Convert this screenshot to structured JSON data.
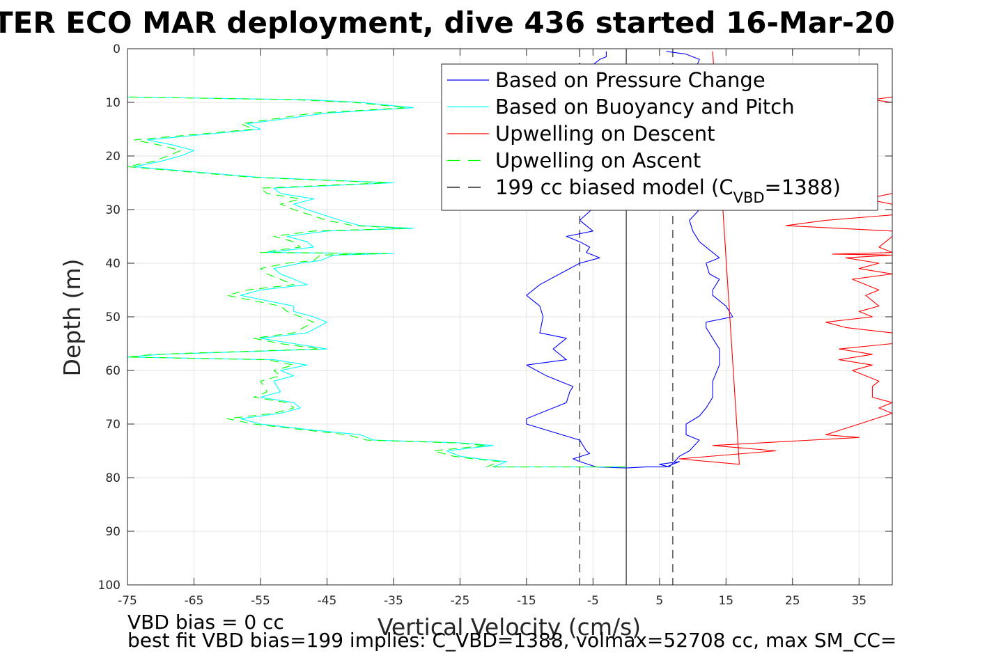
{
  "chart_data": {
    "type": "line",
    "title": "TER ECO MAR deployment, dive 436 started 16-Mar-20",
    "xlabel": "Vertical Velocity (cm/s)",
    "ylabel": "Depth (m)",
    "xlim": [
      -75,
      40
    ],
    "ylim": [
      100,
      0
    ],
    "y_reversed": true,
    "x_ticks": [
      -75,
      -65,
      -55,
      -45,
      -35,
      -25,
      -15,
      -5,
      5,
      15,
      25,
      35
    ],
    "y_ticks": [
      0,
      10,
      20,
      30,
      40,
      50,
      60,
      70,
      80,
      90,
      100
    ],
    "grid": true,
    "legend_position": "top-right",
    "legend": [
      {
        "label": "Based on Pressure Change",
        "color": "#0000ff",
        "style": "solid"
      },
      {
        "label": "Based on Buoyancy and Pitch",
        "color": "#00ffff",
        "style": "solid"
      },
      {
        "label": "Upwelling on Descent",
        "color": "#ff0000",
        "style": "solid"
      },
      {
        "label": "Upwelling on Ascent",
        "color": "#00ff00",
        "style": "dashed"
      },
      {
        "label": "199 cc biased model (C",
        "sub": "VBD",
        "suffix": "=1388)",
        "color": "#000000",
        "style": "dashed"
      }
    ],
    "series": [
      {
        "name": "Based on Pressure Change",
        "color": "#0000ff",
        "dash": "",
        "points": [
          [
            -3,
            0.5
          ],
          [
            -3,
            1.5
          ],
          [
            -4,
            2
          ],
          [
            -5,
            3
          ],
          [
            -5,
            8
          ],
          [
            -5.5,
            20
          ],
          [
            -5.2,
            30
          ],
          [
            -7,
            32
          ],
          [
            -5,
            34
          ],
          [
            -9,
            35
          ],
          [
            -7,
            36
          ],
          [
            -5.5,
            37
          ],
          [
            -6,
            38
          ],
          [
            -4,
            39
          ],
          [
            -7,
            40
          ],
          [
            -10,
            42
          ],
          [
            -13,
            44
          ],
          [
            -15,
            46
          ],
          [
            -13,
            48
          ],
          [
            -12.5,
            50
          ],
          [
            -13,
            53
          ],
          [
            -9,
            54
          ],
          [
            -11,
            56
          ],
          [
            -9,
            58
          ],
          [
            -15,
            59
          ],
          [
            -12,
            61
          ],
          [
            -8,
            63
          ],
          [
            -8.5,
            64
          ],
          [
            -9,
            66
          ],
          [
            -15,
            69
          ],
          [
            -15,
            70
          ],
          [
            -7,
            73
          ],
          [
            -6,
            75
          ],
          [
            -5.5,
            75.5
          ],
          [
            -8,
            76.5
          ],
          [
            -7,
            77
          ],
          [
            -4.5,
            78
          ],
          [
            0,
            78.2
          ],
          [
            3,
            78
          ],
          [
            6,
            78
          ],
          [
            8,
            77
          ],
          [
            5,
            77.5
          ],
          [
            6.5,
            78
          ],
          [
            8,
            76
          ],
          [
            9.5,
            75
          ],
          [
            11,
            73
          ],
          [
            9,
            72
          ],
          [
            9,
            70
          ],
          [
            11,
            68.5
          ],
          [
            12,
            67
          ],
          [
            13,
            65
          ],
          [
            13,
            62
          ],
          [
            14,
            59
          ],
          [
            14,
            56
          ],
          [
            13,
            54
          ],
          [
            12,
            52
          ],
          [
            12,
            51
          ],
          [
            16,
            50
          ],
          [
            15,
            48
          ],
          [
            13,
            46
          ],
          [
            13,
            45
          ],
          [
            14,
            43
          ],
          [
            12.5,
            42
          ],
          [
            12,
            40
          ],
          [
            14,
            39
          ],
          [
            13,
            38
          ],
          [
            11,
            36
          ],
          [
            10,
            34
          ],
          [
            9.5,
            32
          ],
          [
            11,
            30
          ],
          [
            11,
            20
          ],
          [
            10,
            5
          ],
          [
            11,
            2
          ],
          [
            9,
            1
          ],
          [
            6,
            0.5
          ]
        ]
      },
      {
        "name": "Based on Buoyancy and Pitch",
        "color": "#00ffff",
        "dash": "",
        "points": [
          [
            0,
            78
          ],
          [
            -20,
            78
          ],
          [
            -18,
            77
          ],
          [
            -22,
            76.5
          ],
          [
            -25,
            76
          ],
          [
            -27,
            75
          ],
          [
            -20,
            74
          ],
          [
            -25,
            73.5
          ],
          [
            -38,
            73
          ],
          [
            -40,
            72
          ],
          [
            -48,
            71
          ],
          [
            -55,
            70
          ],
          [
            -58,
            69
          ],
          [
            -52,
            68
          ],
          [
            -49,
            67
          ],
          [
            -50,
            66
          ],
          [
            -55,
            65
          ],
          [
            -52,
            64
          ],
          [
            -53,
            62
          ],
          [
            -50,
            61
          ],
          [
            -52,
            60
          ],
          [
            -48,
            59
          ],
          [
            -53,
            58
          ],
          [
            -75,
            57.5
          ],
          [
            -70,
            57
          ],
          [
            -45,
            56
          ],
          [
            -50,
            55
          ],
          [
            -55,
            54
          ],
          [
            -48,
            53
          ],
          [
            -45,
            51
          ],
          [
            -47,
            50
          ],
          [
            -50,
            49
          ],
          [
            -50,
            48
          ],
          [
            -58,
            46
          ],
          [
            -55,
            45
          ],
          [
            -48,
            44
          ],
          [
            -52,
            42
          ],
          [
            -53,
            41
          ],
          [
            -49,
            40
          ],
          [
            -46,
            39.5
          ],
          [
            -44,
            38.5
          ],
          [
            -35,
            38.2
          ],
          [
            -54,
            38
          ],
          [
            -47,
            37
          ],
          [
            -48,
            36
          ],
          [
            -51,
            35
          ],
          [
            -45,
            34
          ],
          [
            -32,
            33.5
          ],
          [
            -40,
            33
          ],
          [
            -43,
            32
          ],
          [
            -48,
            30
          ],
          [
            -50,
            29
          ],
          [
            -47,
            28
          ],
          [
            -52,
            27
          ],
          [
            -53,
            26
          ],
          [
            -35,
            25
          ],
          [
            -55,
            24
          ],
          [
            -74,
            22
          ],
          [
            -70,
            21
          ],
          [
            -67,
            20
          ],
          [
            -65,
            19
          ],
          [
            -68,
            18
          ],
          [
            -72,
            17
          ],
          [
            -55,
            15
          ],
          [
            -57,
            14
          ],
          [
            -45,
            12
          ],
          [
            -32,
            11
          ],
          [
            -40,
            10
          ],
          [
            -48,
            9.5
          ],
          [
            -75,
            9
          ]
        ]
      },
      {
        "name": "Upwelling on Ascent",
        "color": "#00ff00",
        "dash": "12 8",
        "points": [
          [
            0,
            78
          ],
          [
            -21,
            78
          ],
          [
            -19,
            77
          ],
          [
            -23,
            76.5
          ],
          [
            -26,
            76
          ],
          [
            -29,
            75
          ],
          [
            -21,
            74
          ],
          [
            -26,
            73.5
          ],
          [
            -39,
            73
          ],
          [
            -42,
            72
          ],
          [
            -49,
            71
          ],
          [
            -56,
            70
          ],
          [
            -60,
            69
          ],
          [
            -53,
            68
          ],
          [
            -50,
            67
          ],
          [
            -51,
            66
          ],
          [
            -56,
            65
          ],
          [
            -54,
            64
          ],
          [
            -55,
            62
          ],
          [
            -52,
            61
          ],
          [
            -53,
            60
          ],
          [
            -50,
            59
          ],
          [
            -54,
            58
          ],
          [
            -75,
            57.5
          ],
          [
            -71,
            57
          ],
          [
            -46,
            56
          ],
          [
            -52,
            55
          ],
          [
            -56,
            54
          ],
          [
            -50,
            53
          ],
          [
            -47,
            51
          ],
          [
            -49,
            50
          ],
          [
            -51,
            49
          ],
          [
            -52,
            48
          ],
          [
            -60,
            46
          ],
          [
            -57,
            45
          ],
          [
            -50,
            44
          ],
          [
            -54,
            42
          ],
          [
            -55,
            41
          ],
          [
            -51,
            40
          ],
          [
            -47,
            39.5
          ],
          [
            -46,
            38.5
          ],
          [
            -36,
            38.2
          ],
          [
            -55,
            38
          ],
          [
            -49,
            37
          ],
          [
            -50,
            36
          ],
          [
            -53,
            35
          ],
          [
            -47,
            34
          ],
          [
            -33,
            33.5
          ],
          [
            -41,
            33
          ],
          [
            -45,
            32
          ],
          [
            -50,
            30
          ],
          [
            -52,
            29
          ],
          [
            -49,
            28
          ],
          [
            -54,
            27
          ],
          [
            -55,
            26
          ],
          [
            -36,
            25
          ],
          [
            -56,
            24
          ],
          [
            -75,
            22
          ],
          [
            -71,
            21
          ],
          [
            -69,
            20
          ],
          [
            -67,
            19
          ],
          [
            -70,
            18
          ],
          [
            -74,
            17
          ],
          [
            -56,
            15
          ],
          [
            -58,
            14
          ],
          [
            -47,
            12
          ],
          [
            -33,
            11
          ],
          [
            -41,
            10
          ],
          [
            -50,
            9.5
          ],
          [
            -75,
            9
          ]
        ]
      },
      {
        "name": "Upwelling on Descent",
        "color": "#ff0000",
        "dash": "",
        "points": [
          [
            13,
            0.5
          ],
          [
            17,
            77.5
          ],
          [
            8,
            76.5
          ],
          [
            22.5,
            75
          ],
          [
            13,
            74
          ],
          [
            35,
            72.5
          ],
          [
            30,
            72
          ],
          [
            35,
            70
          ],
          [
            40,
            68
          ],
          [
            38,
            67
          ],
          [
            40,
            66
          ],
          [
            37,
            65
          ],
          [
            37,
            63
          ],
          [
            38,
            62
          ],
          [
            34,
            60
          ],
          [
            37,
            59
          ],
          [
            32,
            58
          ],
          [
            37,
            57
          ],
          [
            32,
            56
          ],
          [
            40,
            55
          ],
          [
            40,
            53
          ],
          [
            33,
            52
          ],
          [
            30,
            51
          ],
          [
            37,
            50
          ],
          [
            35,
            49
          ],
          [
            38,
            48
          ],
          [
            36,
            46
          ],
          [
            38,
            45
          ],
          [
            36,
            44
          ],
          [
            34,
            43
          ],
          [
            40,
            42
          ],
          [
            35,
            41
          ],
          [
            38,
            40
          ],
          [
            33,
            39
          ],
          [
            40,
            38.5
          ],
          [
            31,
            38.3
          ],
          [
            40,
            38
          ],
          [
            38,
            37
          ],
          [
            40,
            35
          ],
          [
            40,
            34
          ],
          [
            24,
            33
          ],
          [
            30,
            32
          ],
          [
            40,
            31
          ],
          [
            40,
            29
          ],
          [
            36,
            28
          ],
          [
            40,
            27
          ],
          [
            40,
            25
          ],
          [
            40,
            21
          ],
          [
            40,
            10
          ],
          [
            37,
            9.5
          ],
          [
            40,
            9
          ]
        ]
      }
    ],
    "vertical_lines": [
      {
        "x": 0,
        "color": "#000000",
        "dash": ""
      },
      {
        "x": -7,
        "color": "#000000",
        "dash": "12 8"
      },
      {
        "x": 7,
        "color": "#000000",
        "dash": "12 8"
      }
    ],
    "annotations": [
      "VBD bias = 0 cc",
      "best fit VBD bias=199 implies: C_VBD=1388, volmax=52708 cc, max SM_CC="
    ]
  }
}
